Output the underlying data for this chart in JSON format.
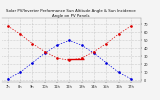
{
  "title": "Solar PV/Inverter Performance Sun Altitude Angle & Sun Incidence Angle on PV Panels",
  "sun_altitude_x": [
    7,
    8,
    9,
    10,
    11,
    12,
    13,
    14,
    15,
    16,
    17
  ],
  "sun_altitude_y": [
    2,
    10,
    22,
    34,
    44,
    50,
    44,
    34,
    22,
    10,
    2
  ],
  "sun_incidence_x": [
    7,
    8,
    9,
    10,
    11,
    12,
    13,
    14,
    15,
    16,
    17
  ],
  "sun_incidence_y": [
    68,
    58,
    46,
    36,
    28,
    25,
    28,
    36,
    46,
    58,
    68
  ],
  "blue_color": "#0000dd",
  "red_color": "#dd0000",
  "bg_color": "#f4f4f4",
  "grid_color": "#999999",
  "title_fontsize": 2.8,
  "tick_fontsize": 2.5,
  "xlim": [
    6.5,
    17.8
  ],
  "ylim": [
    -2,
    78
  ],
  "horizontal_line_x": [
    11.8,
    13.2
  ],
  "horizontal_line_y": 27,
  "yticks": [
    0,
    10,
    20,
    30,
    40,
    50,
    60,
    70
  ],
  "ytick_labels": [
    "0",
    "10",
    "20",
    "30",
    "40",
    "50",
    "60",
    "70"
  ],
  "xticks": [
    7,
    8,
    9,
    10,
    11,
    12,
    13,
    14,
    15,
    16,
    17
  ],
  "xtick_labels": [
    "7h",
    "8h",
    "9h",
    "10h",
    "11h",
    "12h",
    "13h",
    "14h",
    "15h",
    "16h",
    "17h"
  ]
}
